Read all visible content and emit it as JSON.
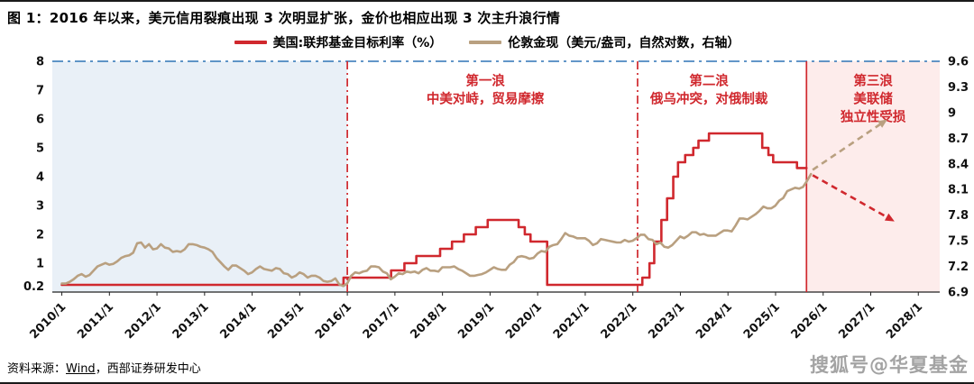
{
  "title": "图 1：2016 年以来，美元信用裂痕出现 3 次明显扩张，金价也相应出现 3 次主升浪行情",
  "source": {
    "prefix": "资料来源：",
    "vendor": "Wind",
    "suffix": "，西部证券研发中心"
  },
  "watermark": "搜狐号@华夏基金",
  "chart_data": {
    "type": "line",
    "title": "图 1：2016 年以来，美元信用裂痕出现 3 次明显扩张，金价也相应出现 3 次主升浪行情",
    "xlabel": "",
    "ylabel_left": "联邦基金目标利率（%）",
    "ylabel_right": "伦敦金现（自然对数）",
    "grid": false,
    "legend_position": "top-center",
    "colors": {
      "red": "#d0282e",
      "gold": "#b9a080",
      "pre2016_region": "#e9f0f7",
      "wave3_region": "#fdeceb",
      "top_border_blue": "#2e74b5"
    },
    "x_axis": {
      "min": 2009.8,
      "max": 2028.45,
      "label_start_year": 2010,
      "label_interval": 1,
      "labels": [
        "2010/1",
        "2011/1",
        "2012/1",
        "2013/1",
        "2014/1",
        "2015/1",
        "2016/1",
        "2017/1",
        "2018/1",
        "2019/1",
        "2020/1",
        "2021/1",
        "2022/1",
        "2023/1",
        "2024/1",
        "2025/1",
        "2026/1",
        "2027/1",
        "2028/1"
      ]
    },
    "y_left": {
      "min": 0,
      "max": 8,
      "ticks": [
        "8",
        "7",
        "6",
        "5",
        "4",
        "3",
        "2",
        "1",
        "0.2"
      ],
      "tick_values": [
        8,
        7,
        6,
        5,
        4,
        3,
        2,
        1,
        0.2
      ]
    },
    "y_right": {
      "min": 6.9,
      "max": 9.6,
      "ticks": [
        "9.6",
        "9.3",
        "9",
        "8.7",
        "8.4",
        "8.1",
        "7.8",
        "7.5",
        "7.2",
        "6.9"
      ],
      "tick_values": [
        9.6,
        9.3,
        9,
        8.7,
        8.4,
        8.1,
        7.8,
        7.5,
        7.2,
        6.9
      ]
    },
    "regions": [
      {
        "name": "pre-2016-region",
        "from": 2009.8,
        "to": 2016.0,
        "color": "#e9f0f7"
      },
      {
        "name": "wave3-region",
        "from": 2025.65,
        "to": 2028.45,
        "color": "#fdeceb"
      }
    ],
    "vlines": [
      {
        "name": "wave1-start-line",
        "x": 2016.0,
        "style": "dashdot",
        "color": "#d0282e"
      },
      {
        "name": "wave2-start-line",
        "x": 2022.1,
        "style": "dashdot",
        "color": "#d0282e"
      },
      {
        "name": "wave3-start-line",
        "x": 2025.65,
        "style": "solid",
        "color": "#d0282e"
      }
    ],
    "top_border": {
      "style": "dashdot",
      "color": "#2e74b5"
    },
    "series": [
      {
        "name": "美国:联邦基金目标利率（%）",
        "data_name": "fed-funds-rate-line",
        "axis": "left",
        "color": "#d0282e",
        "style": "step",
        "points": [
          [
            2010.0,
            0.25
          ],
          [
            2015.92,
            0.25
          ],
          [
            2015.92,
            0.5
          ],
          [
            2016.92,
            0.5
          ],
          [
            2016.92,
            0.75
          ],
          [
            2017.2,
            0.75
          ],
          [
            2017.2,
            1.0
          ],
          [
            2017.45,
            1.0
          ],
          [
            2017.45,
            1.25
          ],
          [
            2017.95,
            1.25
          ],
          [
            2017.95,
            1.5
          ],
          [
            2018.2,
            1.5
          ],
          [
            2018.2,
            1.75
          ],
          [
            2018.45,
            1.75
          ],
          [
            2018.45,
            2.0
          ],
          [
            2018.7,
            2.0
          ],
          [
            2018.7,
            2.25
          ],
          [
            2018.95,
            2.25
          ],
          [
            2018.95,
            2.5
          ],
          [
            2019.6,
            2.5
          ],
          [
            2019.6,
            2.25
          ],
          [
            2019.73,
            2.25
          ],
          [
            2019.73,
            2.0
          ],
          [
            2019.85,
            2.0
          ],
          [
            2019.85,
            1.75
          ],
          [
            2020.2,
            1.75
          ],
          [
            2020.2,
            0.25
          ],
          [
            2022.2,
            0.25
          ],
          [
            2022.2,
            0.5
          ],
          [
            2022.35,
            0.5
          ],
          [
            2022.35,
            1.0
          ],
          [
            2022.45,
            1.0
          ],
          [
            2022.45,
            1.75
          ],
          [
            2022.6,
            1.75
          ],
          [
            2022.6,
            2.5
          ],
          [
            2022.72,
            2.5
          ],
          [
            2022.72,
            3.25
          ],
          [
            2022.85,
            3.25
          ],
          [
            2022.85,
            4.0
          ],
          [
            2022.95,
            4.0
          ],
          [
            2022.95,
            4.5
          ],
          [
            2023.1,
            4.5
          ],
          [
            2023.1,
            4.75
          ],
          [
            2023.27,
            4.75
          ],
          [
            2023.27,
            5.0
          ],
          [
            2023.38,
            5.0
          ],
          [
            2023.38,
            5.25
          ],
          [
            2023.6,
            5.25
          ],
          [
            2023.6,
            5.5
          ],
          [
            2024.72,
            5.5
          ],
          [
            2024.72,
            5.0
          ],
          [
            2024.85,
            5.0
          ],
          [
            2024.85,
            4.75
          ],
          [
            2024.95,
            4.75
          ],
          [
            2024.95,
            4.5
          ],
          [
            2025.45,
            4.5
          ],
          [
            2025.45,
            4.3
          ],
          [
            2025.65,
            4.3
          ]
        ]
      },
      {
        "name": "伦敦金现（美元/盎司，自然对数，右轴）",
        "data_name": "london-gold-log-line",
        "axis": "right",
        "color": "#b9a080",
        "style": "line",
        "x_start": 2010.0,
        "x_step": 0.0833,
        "values": [
          7.0,
          7.0,
          7.02,
          7.05,
          7.09,
          7.11,
          7.08,
          7.1,
          7.15,
          7.2,
          7.22,
          7.24,
          7.22,
          7.23,
          7.26,
          7.3,
          7.32,
          7.33,
          7.36,
          7.47,
          7.48,
          7.42,
          7.46,
          7.4,
          7.41,
          7.46,
          7.42,
          7.41,
          7.37,
          7.38,
          7.37,
          7.4,
          7.46,
          7.46,
          7.45,
          7.43,
          7.42,
          7.4,
          7.37,
          7.3,
          7.25,
          7.2,
          7.16,
          7.21,
          7.21,
          7.18,
          7.15,
          7.11,
          7.13,
          7.17,
          7.2,
          7.17,
          7.16,
          7.15,
          7.18,
          7.17,
          7.12,
          7.11,
          7.07,
          7.09,
          7.13,
          7.11,
          7.07,
          7.09,
          7.09,
          7.07,
          7.03,
          7.02,
          7.03,
          7.06,
          6.99,
          6.97,
          7.0,
          7.09,
          7.13,
          7.12,
          7.14,
          7.15,
          7.2,
          7.2,
          7.19,
          7.14,
          7.12,
          7.05,
          7.08,
          7.12,
          7.11,
          7.14,
          7.13,
          7.14,
          7.12,
          7.16,
          7.18,
          7.15,
          7.15,
          7.14,
          7.19,
          7.19,
          7.19,
          7.2,
          7.17,
          7.15,
          7.12,
          7.09,
          7.09,
          7.1,
          7.11,
          7.13,
          7.16,
          7.19,
          7.17,
          7.16,
          7.16,
          7.22,
          7.25,
          7.31,
          7.32,
          7.31,
          7.29,
          7.3,
          7.35,
          7.38,
          7.37,
          7.43,
          7.45,
          7.46,
          7.52,
          7.59,
          7.56,
          7.55,
          7.53,
          7.53,
          7.53,
          7.5,
          7.45,
          7.47,
          7.52,
          7.51,
          7.5,
          7.49,
          7.48,
          7.48,
          7.51,
          7.49,
          7.5,
          7.53,
          7.57,
          7.57,
          7.52,
          7.51,
          7.46,
          7.48,
          7.43,
          7.42,
          7.45,
          7.5,
          7.55,
          7.53,
          7.56,
          7.6,
          7.6,
          7.57,
          7.58,
          7.56,
          7.56,
          7.56,
          7.59,
          7.62,
          7.62,
          7.61,
          7.68,
          7.76,
          7.76,
          7.75,
          7.78,
          7.81,
          7.85,
          7.9,
          7.88,
          7.88,
          7.91,
          7.97,
          8.0,
          8.08,
          8.1,
          8.12,
          8.11,
          8.13,
          8.2,
          8.28
        ]
      }
    ],
    "annotations": [
      {
        "name": "wave1-label",
        "x": 2018.9,
        "y_left": 7.55,
        "lines": [
          "第一浪",
          "中美对峙，贸易摩擦"
        ]
      },
      {
        "name": "wave2-label",
        "x": 2023.6,
        "y_left": 7.55,
        "lines": [
          "第二浪",
          "俄乌冲突，对俄制裁"
        ]
      },
      {
        "name": "wave3-label",
        "x": 2027.05,
        "y_left": 7.55,
        "lines": [
          "第三浪",
          "美联储",
          "独立性受损"
        ]
      }
    ],
    "arrows": [
      {
        "name": "gold-projection-arrow",
        "axis": "right",
        "color": "#b9a080",
        "from": [
          2025.78,
          8.33
        ],
        "to": [
          2027.35,
          8.92
        ]
      },
      {
        "name": "rate-projection-arrow",
        "axis": "left",
        "color": "#d0282e",
        "from": [
          2025.78,
          4.05
        ],
        "to": [
          2027.5,
          2.45
        ]
      }
    ]
  }
}
